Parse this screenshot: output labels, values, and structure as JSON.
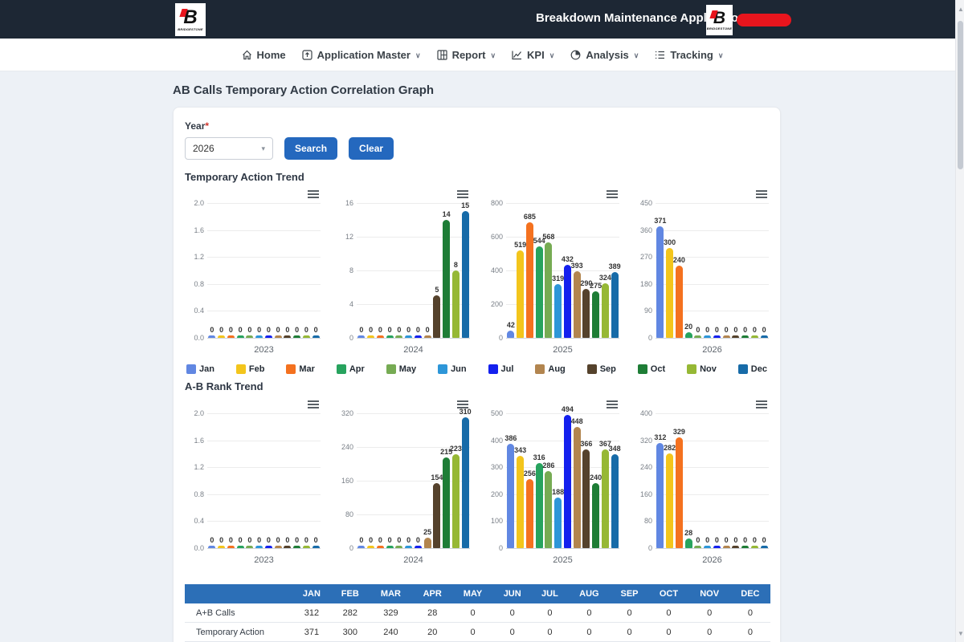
{
  "colors": {
    "header_bg": "#1d2734",
    "button_blue": "#2468be",
    "table_header_bg": "#2c6fb7",
    "redaction_pill": "#e8151d",
    "month_colors": [
      "#6187e2",
      "#f3c51c",
      "#f4711f",
      "#27a35e",
      "#76ab53",
      "#2d96d8",
      "#1420ee",
      "#b2854f",
      "#55422c",
      "#1e7d36",
      "#96b835",
      "#176ba8"
    ]
  },
  "header": {
    "title": "Breakdown Maintenance Application",
    "brand": "BRIDGESTONE",
    "brand_letter": "B"
  },
  "nav": {
    "items": [
      {
        "label": "Home",
        "icon": "home-icon",
        "dropdown": false
      },
      {
        "label": "Application Master",
        "icon": "application-master-icon",
        "dropdown": true
      },
      {
        "label": "Report",
        "icon": "report-icon",
        "dropdown": true
      },
      {
        "label": "KPI",
        "icon": "kpi-icon",
        "dropdown": true
      },
      {
        "label": "Analysis",
        "icon": "analysis-icon",
        "dropdown": true
      },
      {
        "label": "Tracking",
        "icon": "tracking-icon",
        "dropdown": true
      }
    ]
  },
  "page": {
    "title": "AB Calls Temporary Action Correlation Graph"
  },
  "filter": {
    "year_label": "Year",
    "required_mark": "*",
    "year_value": "2026",
    "search_label": "Search",
    "clear_label": "Clear"
  },
  "months": [
    "Jan",
    "Feb",
    "Mar",
    "Apr",
    "May",
    "Jun",
    "Jul",
    "Aug",
    "Sep",
    "Oct",
    "Nov",
    "Dec"
  ],
  "chart_data": [
    {
      "type": "bar",
      "section_title": "Temporary Action Trend",
      "categories": [
        "Jan",
        "Feb",
        "Mar",
        "Apr",
        "May",
        "Jun",
        "Jul",
        "Aug",
        "Sep",
        "Oct",
        "Nov",
        "Dec"
      ],
      "legend_position": "bottom-shared",
      "grid": true,
      "charts": [
        {
          "year": "2023",
          "ylim": [
            0,
            2
          ],
          "yticks": [
            "2.0",
            "1.6",
            "1.2",
            "0.8",
            "0.4",
            "0.0"
          ],
          "values": [
            0,
            0,
            0,
            0,
            0,
            0,
            0,
            0,
            0,
            0,
            0,
            0
          ]
        },
        {
          "year": "2024",
          "ylim": [
            0,
            16
          ],
          "yticks": [
            "16",
            "12",
            "8",
            "4",
            "0"
          ],
          "values": [
            0,
            0,
            0,
            0,
            0,
            0,
            0,
            0,
            5,
            14,
            8,
            15
          ]
        },
        {
          "year": "2025",
          "ylim": [
            0,
            800
          ],
          "yticks": [
            "800",
            "600",
            "400",
            "200",
            "0"
          ],
          "values": [
            42,
            519,
            685,
            544,
            568,
            319,
            432,
            393,
            290,
            275,
            324,
            389
          ]
        },
        {
          "year": "2026",
          "ylim": [
            0,
            450
          ],
          "yticks": [
            "450",
            "360",
            "270",
            "180",
            "90",
            "0"
          ],
          "values": [
            371,
            300,
            240,
            20,
            0,
            0,
            0,
            0,
            0,
            0,
            0,
            0
          ]
        }
      ]
    },
    {
      "type": "bar",
      "section_title": "A-B Rank Trend",
      "categories": [
        "Jan",
        "Feb",
        "Mar",
        "Apr",
        "May",
        "Jun",
        "Jul",
        "Aug",
        "Sep",
        "Oct",
        "Nov",
        "Dec"
      ],
      "legend_position": "bottom-shared",
      "grid": true,
      "charts": [
        {
          "year": "2023",
          "ylim": [
            0,
            2
          ],
          "yticks": [
            "2.0",
            "1.6",
            "1.2",
            "0.8",
            "0.4",
            "0.0"
          ],
          "values": [
            0,
            0,
            0,
            0,
            0,
            0,
            0,
            0,
            0,
            0,
            0,
            0
          ]
        },
        {
          "year": "2024",
          "ylim": [
            0,
            320
          ],
          "yticks": [
            "320",
            "240",
            "160",
            "80",
            "0"
          ],
          "values": [
            0,
            0,
            0,
            0,
            0,
            0,
            0,
            25,
            154,
            215,
            223,
            310
          ]
        },
        {
          "year": "2025",
          "ylim": [
            0,
            500
          ],
          "yticks": [
            "500",
            "400",
            "300",
            "200",
            "100",
            "0"
          ],
          "values": [
            386,
            343,
            256,
            316,
            286,
            188,
            494,
            448,
            366,
            240,
            367,
            348
          ]
        },
        {
          "year": "2026",
          "ylim": [
            0,
            400
          ],
          "yticks": [
            "400",
            "320",
            "240",
            "160",
            "80",
            "0"
          ],
          "values": [
            312,
            282,
            329,
            28,
            0,
            0,
            0,
            0,
            0,
            0,
            0,
            0
          ]
        }
      ]
    }
  ],
  "table": {
    "headers": [
      "",
      "JAN",
      "FEB",
      "MAR",
      "APR",
      "MAY",
      "JUN",
      "JUL",
      "AUG",
      "SEP",
      "OCT",
      "NOV",
      "DEC"
    ],
    "rows": [
      {
        "label": "A+B Calls",
        "values": [
          "312",
          "282",
          "329",
          "28",
          "0",
          "0",
          "0",
          "0",
          "0",
          "0",
          "0",
          "0"
        ]
      },
      {
        "label": "Temporary Action",
        "values": [
          "371",
          "300",
          "240",
          "20",
          "0",
          "0",
          "0",
          "0",
          "0",
          "0",
          "0",
          "0"
        ]
      }
    ]
  }
}
